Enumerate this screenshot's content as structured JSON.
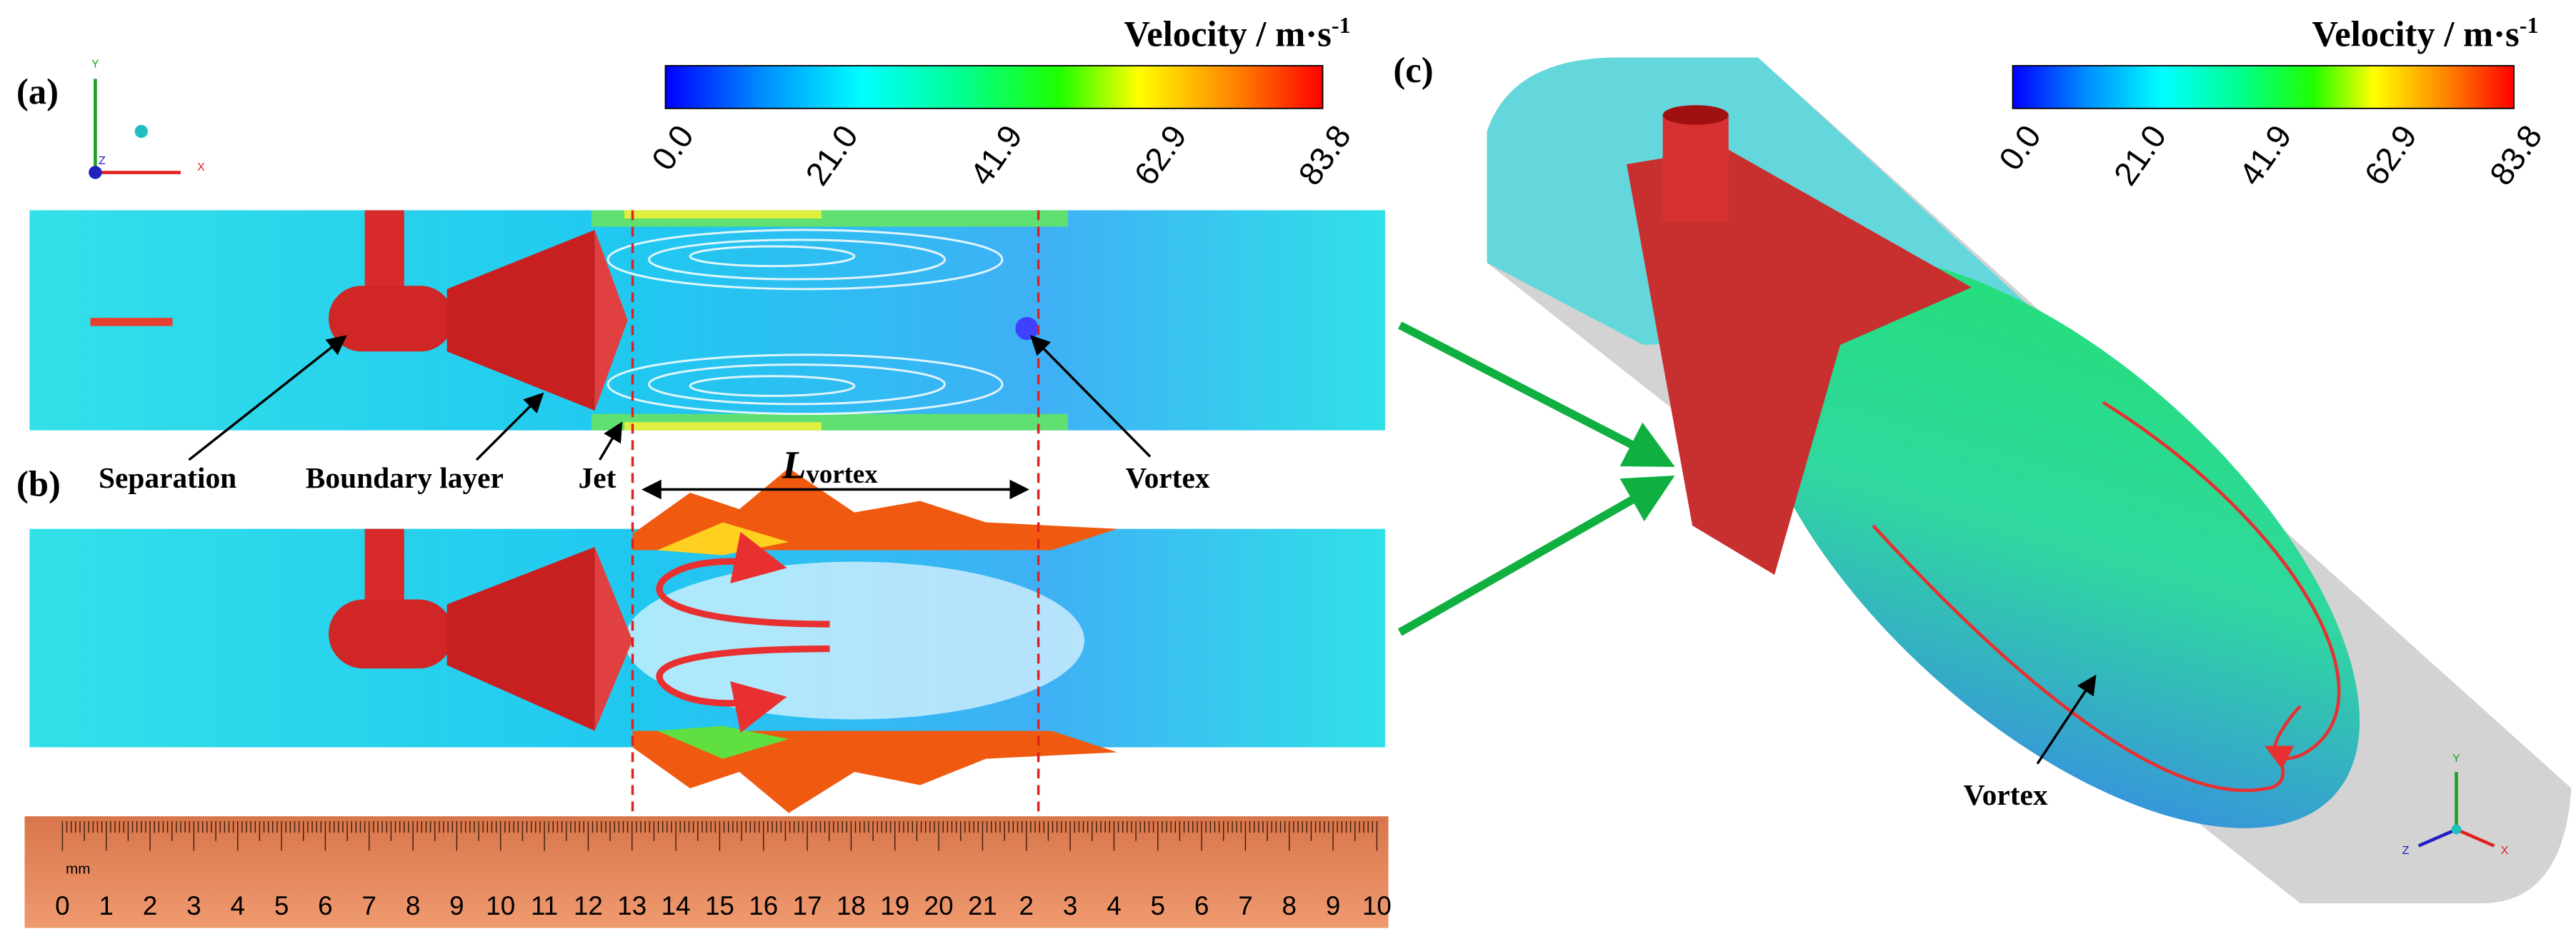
{
  "labels": {
    "a": "(a)",
    "b": "(b)",
    "c": "(c)"
  },
  "colorbar": {
    "title": "Velocity / m·s",
    "title_sup": "-1",
    "ticks": [
      "0.0",
      "21.0",
      "41.9",
      "62.9",
      "83.8"
    ]
  },
  "annotations": {
    "separation": "Separation",
    "boundary_layer": "Boundary layer",
    "jet": "Jet",
    "l_vortex": "L",
    "l_vortex_sub": "vortex",
    "vortex_a": "Vortex",
    "vortex_c": "Vortex"
  },
  "ruler": {
    "unit": "mm",
    "labels": [
      "0",
      "1",
      "2",
      "3",
      "4",
      "5",
      "6",
      "7",
      "8",
      "9",
      "10",
      "11",
      "12",
      "13",
      "14",
      "15",
      "16",
      "17",
      "18",
      "19",
      "20",
      "21",
      "2",
      "3",
      "4",
      "5",
      "6",
      "7",
      "8",
      "9",
      "10"
    ]
  },
  "axes_a": {
    "x": "X",
    "y": "Y",
    "z": "Z"
  },
  "axes_c": {
    "x": "X",
    "y": "Y",
    "z": "Z"
  }
}
